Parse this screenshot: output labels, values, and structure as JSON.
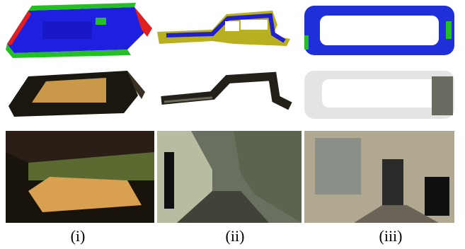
{
  "captions": [
    "(i)",
    "(ii)",
    "(iii)"
  ]
}
